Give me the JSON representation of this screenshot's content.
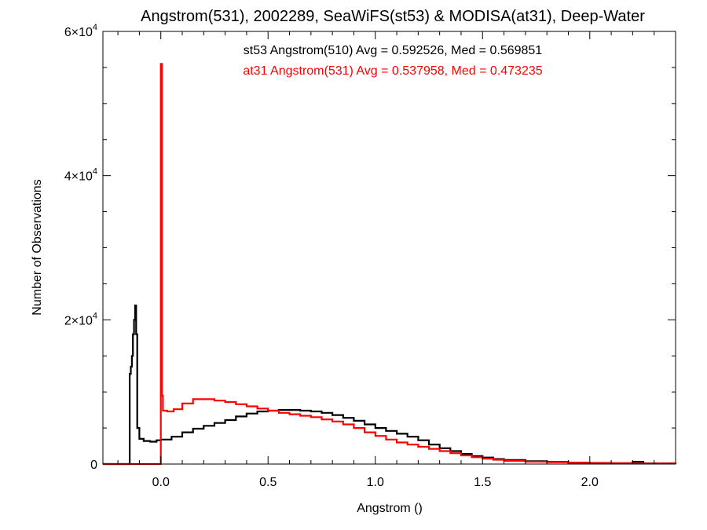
{
  "chart_data": {
    "type": "line",
    "step": true,
    "title": "Angstrom(531), 2002289, SeaWiFS(st53) & MODISA(at31), Deep-Water",
    "xlabel": "Angstrom ()",
    "ylabel": "Number of Observations",
    "xlim": [
      -0.27,
      2.4
    ],
    "ylim": [
      0,
      60000
    ],
    "x_ticks": [
      {
        "value": 0.0,
        "label": "0.0"
      },
      {
        "value": 0.5,
        "label": "0.5"
      },
      {
        "value": 1.0,
        "label": "1.0"
      },
      {
        "value": 1.5,
        "label": "1.5"
      },
      {
        "value": 2.0,
        "label": "2.0"
      }
    ],
    "y_ticks": [
      {
        "value": 0,
        "base": "0",
        "exp": ""
      },
      {
        "value": 20000,
        "base": "2×10",
        "exp": "4"
      },
      {
        "value": 40000,
        "base": "4×10",
        "exp": "4"
      },
      {
        "value": 60000,
        "base": "6×10",
        "exp": "4"
      }
    ],
    "annotations": [
      {
        "text": "st53 Angstrom(510) Avg = 0.592526, Med = 0.569851",
        "color": "#000000"
      },
      {
        "text": "at31 Angstrom(531) Avg = 0.537958, Med = 0.473235",
        "color": "#ff0000"
      }
    ],
    "series": [
      {
        "color": "#000000",
        "points": [
          [
            -0.27,
            0
          ],
          [
            -0.15,
            0
          ],
          [
            -0.145,
            12500
          ],
          [
            -0.14,
            13500
          ],
          [
            -0.135,
            15000
          ],
          [
            -0.13,
            18000
          ],
          [
            -0.125,
            20000
          ],
          [
            -0.12,
            22000
          ],
          [
            -0.115,
            18000
          ],
          [
            -0.11,
            5000
          ],
          [
            -0.1,
            3500
          ],
          [
            -0.08,
            3200
          ],
          [
            -0.05,
            3100
          ],
          [
            -0.02,
            3300
          ],
          [
            0.0,
            3400
          ],
          [
            0.05,
            3800
          ],
          [
            0.1,
            4400
          ],
          [
            0.15,
            4900
          ],
          [
            0.2,
            5300
          ],
          [
            0.25,
            5700
          ],
          [
            0.3,
            6100
          ],
          [
            0.35,
            6600
          ],
          [
            0.4,
            7000
          ],
          [
            0.45,
            7300
          ],
          [
            0.5,
            7400
          ],
          [
            0.55,
            7500
          ],
          [
            0.6,
            7500
          ],
          [
            0.65,
            7400
          ],
          [
            0.7,
            7300
          ],
          [
            0.75,
            7100
          ],
          [
            0.8,
            6800
          ],
          [
            0.85,
            6400
          ],
          [
            0.9,
            6000
          ],
          [
            0.95,
            5500
          ],
          [
            1.0,
            5000
          ],
          [
            1.05,
            4600
          ],
          [
            1.1,
            4200
          ],
          [
            1.15,
            3800
          ],
          [
            1.2,
            3300
          ],
          [
            1.25,
            2700
          ],
          [
            1.3,
            2200
          ],
          [
            1.35,
            1800
          ],
          [
            1.4,
            1400
          ],
          [
            1.45,
            1100
          ],
          [
            1.5,
            900
          ],
          [
            1.55,
            700
          ],
          [
            1.6,
            550
          ],
          [
            1.7,
            400
          ],
          [
            1.8,
            300
          ],
          [
            1.9,
            200
          ],
          [
            2.0,
            150
          ],
          [
            2.1,
            120
          ],
          [
            2.2,
            300
          ],
          [
            2.25,
            100
          ],
          [
            2.4,
            50
          ]
        ]
      },
      {
        "color": "#ff0000",
        "points": [
          [
            -0.27,
            0
          ],
          [
            -0.005,
            0
          ],
          [
            0.0,
            55500
          ],
          [
            0.005,
            9500
          ],
          [
            0.01,
            7400
          ],
          [
            0.03,
            7300
          ],
          [
            0.06,
            7600
          ],
          [
            0.1,
            8400
          ],
          [
            0.15,
            9000
          ],
          [
            0.2,
            9000
          ],
          [
            0.25,
            8800
          ],
          [
            0.3,
            8600
          ],
          [
            0.35,
            8300
          ],
          [
            0.4,
            8000
          ],
          [
            0.45,
            7700
          ],
          [
            0.5,
            7400
          ],
          [
            0.55,
            7100
          ],
          [
            0.6,
            6900
          ],
          [
            0.65,
            6700
          ],
          [
            0.7,
            6500
          ],
          [
            0.75,
            6200
          ],
          [
            0.8,
            5900
          ],
          [
            0.85,
            5500
          ],
          [
            0.9,
            5000
          ],
          [
            0.95,
            4400
          ],
          [
            1.0,
            3900
          ],
          [
            1.05,
            3400
          ],
          [
            1.1,
            3000
          ],
          [
            1.15,
            2700
          ],
          [
            1.2,
            2400
          ],
          [
            1.25,
            2100
          ],
          [
            1.3,
            1800
          ],
          [
            1.35,
            1500
          ],
          [
            1.4,
            1200
          ],
          [
            1.45,
            950
          ],
          [
            1.5,
            750
          ],
          [
            1.55,
            600
          ],
          [
            1.6,
            450
          ],
          [
            1.7,
            330
          ],
          [
            1.8,
            250
          ],
          [
            1.9,
            180
          ],
          [
            2.0,
            130
          ],
          [
            2.1,
            100
          ],
          [
            2.2,
            80
          ],
          [
            2.3,
            60
          ],
          [
            2.4,
            40
          ]
        ]
      }
    ]
  }
}
